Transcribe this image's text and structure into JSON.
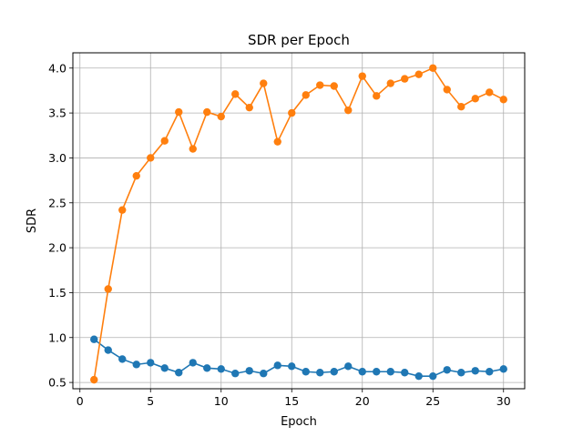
{
  "chart_data": {
    "type": "line",
    "title": "SDR per Epoch",
    "xlabel": "Epoch",
    "ylabel": "SDR",
    "xlim": [
      -0.5,
      31.5
    ],
    "ylim": [
      0.43,
      4.17
    ],
    "xticks": [
      0,
      5,
      10,
      15,
      20,
      25,
      30
    ],
    "yticks": [
      0.5,
      1.0,
      1.5,
      2.0,
      2.5,
      3.0,
      3.5,
      4.0
    ],
    "grid": true,
    "x": [
      1,
      2,
      3,
      4,
      5,
      6,
      7,
      8,
      9,
      10,
      11,
      12,
      13,
      14,
      15,
      16,
      17,
      18,
      19,
      20,
      21,
      22,
      23,
      24,
      25,
      26,
      27,
      28,
      29,
      30
    ],
    "series": [
      {
        "color": "#1f77b4",
        "marker": "circle",
        "values": [
          0.98,
          0.86,
          0.76,
          0.7,
          0.72,
          0.66,
          0.61,
          0.72,
          0.66,
          0.65,
          0.6,
          0.63,
          0.6,
          0.69,
          0.68,
          0.62,
          0.61,
          0.62,
          0.68,
          0.62,
          0.62,
          0.62,
          0.61,
          0.57,
          0.57,
          0.64,
          0.61,
          0.63,
          0.62,
          0.65
        ]
      },
      {
        "color": "#ff7f0e",
        "marker": "circle",
        "values": [
          0.53,
          1.54,
          2.42,
          2.8,
          3.0,
          3.19,
          3.51,
          3.1,
          3.51,
          3.46,
          3.71,
          3.56,
          3.83,
          3.18,
          3.5,
          3.7,
          3.81,
          3.8,
          3.53,
          3.91,
          3.69,
          3.83,
          3.88,
          3.93,
          4.0,
          3.76,
          3.57,
          3.66,
          3.73,
          3.65
        ]
      }
    ]
  }
}
